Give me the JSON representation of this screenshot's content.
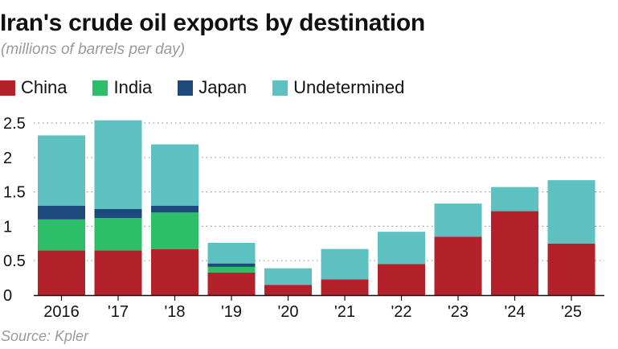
{
  "title": "Iran's crude oil exports by destination",
  "subtitle": "(millions of barrels per day)",
  "source": "Source: Kpler",
  "colors": {
    "China": "#b3222a",
    "India": "#2dbe6a",
    "Japan": "#1d4a7c",
    "Undetermined": "#5ec1c1"
  },
  "chart_data": {
    "type": "bar",
    "stacked": true,
    "categories": [
      "2016",
      "'17",
      "'18",
      "'19",
      "'20",
      "'21",
      "'22",
      "'23",
      "'24",
      "'25"
    ],
    "series": [
      {
        "name": "China",
        "values": [
          0.65,
          0.65,
          0.67,
          0.33,
          0.15,
          0.23,
          0.45,
          0.85,
          1.22,
          0.75
        ]
      },
      {
        "name": "India",
        "values": [
          0.45,
          0.47,
          0.53,
          0.08,
          0,
          0,
          0,
          0,
          0,
          0
        ]
      },
      {
        "name": "Japan",
        "values": [
          0.2,
          0.13,
          0.1,
          0.05,
          0,
          0,
          0,
          0,
          0,
          0
        ]
      },
      {
        "name": "Undetermined",
        "values": [
          1.02,
          1.29,
          0.89,
          0.3,
          0.24,
          0.44,
          0.47,
          0.48,
          0.35,
          0.92
        ]
      }
    ],
    "ylim": [
      0,
      2.5
    ],
    "yticks": [
      "0",
      "0.5",
      "1",
      "1.5",
      "2",
      "2.5"
    ],
    "ytick_values": [
      0,
      0.5,
      1,
      1.5,
      2,
      2.5
    ],
    "grid": true,
    "legend": "top-left"
  }
}
